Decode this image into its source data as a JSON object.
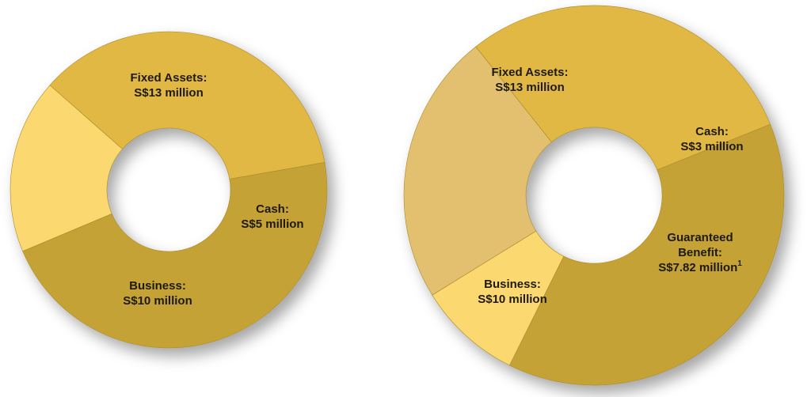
{
  "chart_data": [
    {
      "type": "pie",
      "title": "",
      "slices": [
        {
          "name": "Fixed Assets",
          "value": 13,
          "label": [
            "Fixed Assets:",
            "S$13 million"
          ],
          "color": "#c4a235"
        },
        {
          "name": "Cash",
          "value": 5,
          "label": [
            "Cash:",
            "S$5 million"
          ],
          "color": "#fcd96f"
        },
        {
          "name": "Business",
          "value": 10,
          "label": [
            "Business:",
            "S$10 million"
          ],
          "color": "#e2b845"
        }
      ]
    },
    {
      "type": "pie",
      "title": "",
      "slices": [
        {
          "name": "Fixed Assets",
          "value": 13,
          "label": [
            "Fixed Assets:",
            "S$13 million"
          ],
          "color": "#c4a235"
        },
        {
          "name": "Cash",
          "value": 3,
          "label": [
            "Cash:",
            "S$3 million"
          ],
          "color": "#fcd96f"
        },
        {
          "name": "Guaranteed Benefit",
          "value": 7.82,
          "label": [
            "Guaranteed",
            "Benefit:",
            "S$7.82 million"
          ],
          "superscript": "1",
          "color": "#e2c070"
        },
        {
          "name": "Business",
          "value": 10,
          "label": [
            "Business:",
            "S$10 million"
          ],
          "color": "#e2b845"
        }
      ]
    }
  ]
}
